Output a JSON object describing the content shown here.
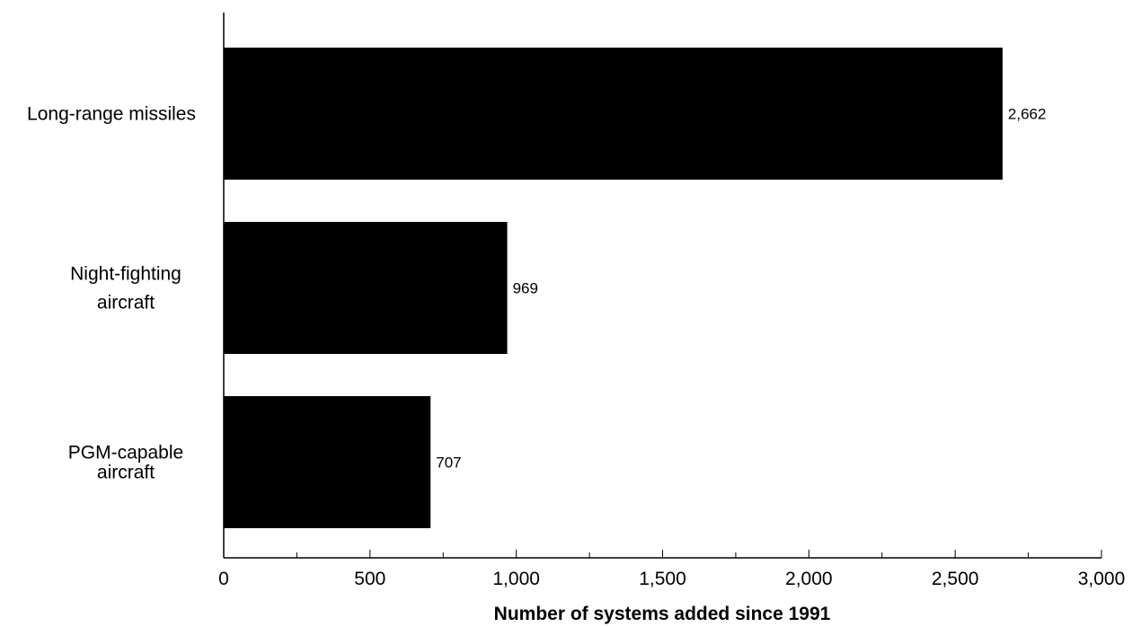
{
  "chart_data": {
    "type": "bar",
    "orientation": "horizontal",
    "categories": [
      [
        "Long-range missiles"
      ],
      [
        "Night-fighting",
        "aircraft"
      ],
      [
        "PGM-capable",
        "aircraft"
      ]
    ],
    "values": [
      2662,
      969,
      707
    ],
    "value_labels": [
      "2,662",
      "969",
      "707"
    ],
    "xlabel": "Number of systems added since 1991",
    "ylabel": "",
    "xlim": [
      0,
      3000
    ],
    "major_ticks": [
      0,
      500,
      1000,
      1500,
      2000,
      2500,
      3000
    ],
    "major_tick_labels": [
      "0",
      "500",
      "1,000",
      "1,500",
      "2,000",
      "2,500",
      "3,000"
    ],
    "minor_tick_step": 250,
    "grid": false,
    "legend": "none",
    "bar_color": "#000000"
  }
}
